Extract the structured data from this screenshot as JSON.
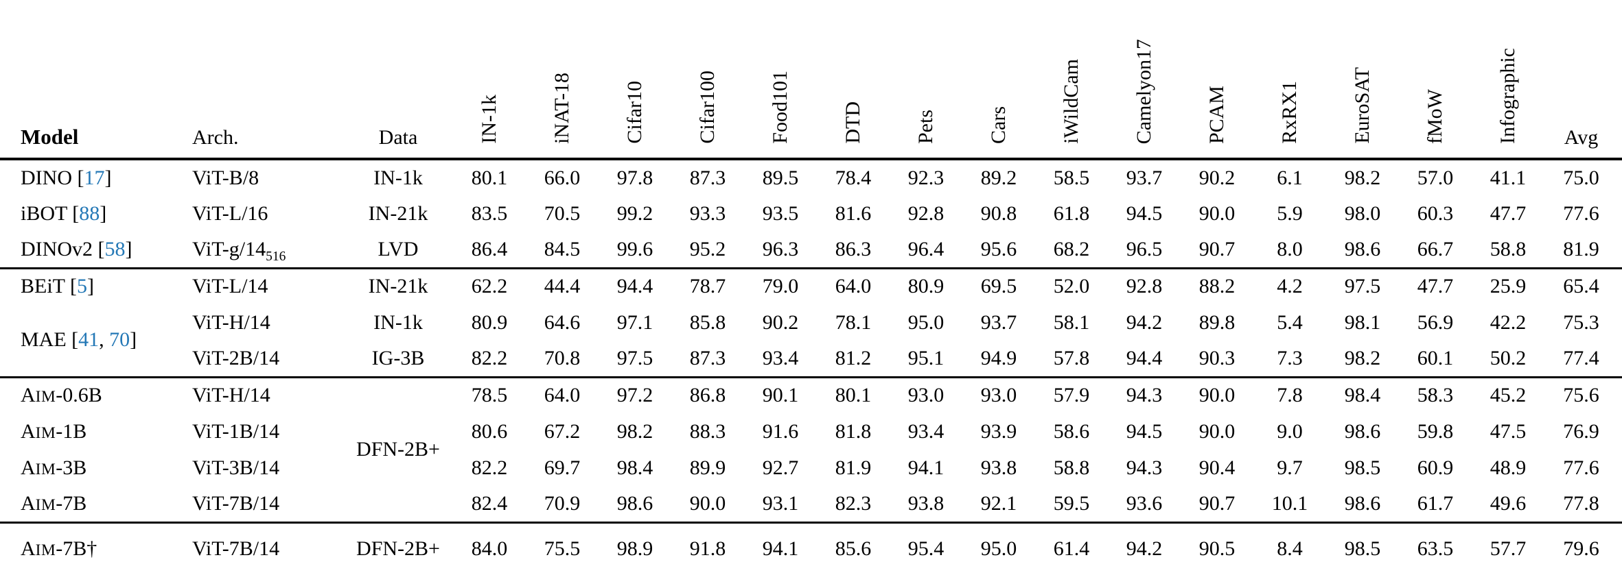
{
  "page": {
    "background": "#ffffff",
    "text_color": "#000000",
    "citation_color": "#2478b6",
    "rule_color": "#000000"
  },
  "table": {
    "header": {
      "model": "Model",
      "arch": "Arch.",
      "data": "Data",
      "avg": "Avg",
      "benchmarks": [
        "IN-1k",
        "iNAT-18",
        "Cifar10",
        "Cifar100",
        "Food101",
        "DTD",
        "Pets",
        "Cars",
        "iWildCam",
        "Camelyon17",
        "PCAM",
        "RxRX1",
        "EuroSAT",
        "fMoW",
        "Infographic"
      ]
    },
    "groups": [
      {
        "rows": [
          {
            "model": {
              "text": "DINO",
              "cites": [
                "17"
              ]
            },
            "arch": {
              "text": "ViT-B/8"
            },
            "data": "IN-1k",
            "values": [
              "80.1",
              "66.0",
              "97.8",
              "87.3",
              "89.5",
              "78.4",
              "92.3",
              "89.2",
              "58.5",
              "93.7",
              "90.2",
              "6.1",
              "98.2",
              "57.0",
              "41.1"
            ],
            "avg": "75.0"
          },
          {
            "model": {
              "text": "iBOT",
              "cites": [
                "88"
              ]
            },
            "arch": {
              "text": "ViT-L/16"
            },
            "data": "IN-21k",
            "values": [
              "83.5",
              "70.5",
              "99.2",
              "93.3",
              "93.5",
              "81.6",
              "92.8",
              "90.8",
              "61.8",
              "94.5",
              "90.0",
              "5.9",
              "98.0",
              "60.3",
              "47.7"
            ],
            "avg": "77.6"
          },
          {
            "model": {
              "text": "DINOv2",
              "cites": [
                "58"
              ]
            },
            "arch": {
              "text": "ViT-g/14",
              "sub": "516"
            },
            "data": "LVD",
            "values": [
              "86.4",
              "84.5",
              "99.6",
              "95.2",
              "96.3",
              "86.3",
              "96.4",
              "95.6",
              "68.2",
              "96.5",
              "90.7",
              "8.0",
              "98.6",
              "66.7",
              "58.8"
            ],
            "avg": "81.9"
          }
        ]
      },
      {
        "rows": [
          {
            "model": {
              "text": "BEiT",
              "cites": [
                "5"
              ]
            },
            "arch": {
              "text": "ViT-L/14"
            },
            "data": "IN-21k",
            "values": [
              "62.2",
              "44.4",
              "94.4",
              "78.7",
              "79.0",
              "64.0",
              "80.9",
              "69.5",
              "52.0",
              "92.8",
              "88.2",
              "4.2",
              "97.5",
              "47.7",
              "25.9"
            ],
            "avg": "65.4"
          },
          {
            "model": {
              "text": "MAE",
              "cites": [
                "41",
                "70"
              ],
              "rowspan": 2
            },
            "arch": {
              "text": "ViT-H/14"
            },
            "data": "IN-1k",
            "values": [
              "80.9",
              "64.6",
              "97.1",
              "85.8",
              "90.2",
              "78.1",
              "95.0",
              "93.7",
              "58.1",
              "94.2",
              "89.8",
              "5.4",
              "98.1",
              "56.9",
              "42.2"
            ],
            "avg": "75.3"
          },
          {
            "arch": {
              "text": "ViT-2B/14"
            },
            "data": "IG-3B",
            "values": [
              "82.2",
              "70.8",
              "97.5",
              "87.3",
              "93.4",
              "81.2",
              "95.1",
              "94.9",
              "57.8",
              "94.4",
              "90.3",
              "7.3",
              "98.2",
              "60.1",
              "50.2"
            ],
            "avg": "77.4"
          }
        ]
      },
      {
        "rows": [
          {
            "model": {
              "text": "AIM-0.6B",
              "smallcaps": true
            },
            "arch": {
              "text": "ViT-H/14"
            },
            "data": {
              "text": "DFN-2B+",
              "rowspan": 4
            },
            "values": [
              "78.5",
              "64.0",
              "97.2",
              "86.8",
              "90.1",
              "80.1",
              "93.0",
              "93.0",
              "57.9",
              "94.3",
              "90.0",
              "7.8",
              "98.4",
              "58.3",
              "45.2"
            ],
            "avg": "75.6"
          },
          {
            "model": {
              "text": "AIM-1B",
              "smallcaps": true
            },
            "arch": {
              "text": "ViT-1B/14"
            },
            "values": [
              "80.6",
              "67.2",
              "98.2",
              "88.3",
              "91.6",
              "81.8",
              "93.4",
              "93.9",
              "58.6",
              "94.5",
              "90.0",
              "9.0",
              "98.6",
              "59.8",
              "47.5"
            ],
            "avg": "76.9"
          },
          {
            "model": {
              "text": "AIM-3B",
              "smallcaps": true
            },
            "arch": {
              "text": "ViT-3B/14"
            },
            "values": [
              "82.2",
              "69.7",
              "98.4",
              "89.9",
              "92.7",
              "81.9",
              "94.1",
              "93.8",
              "58.8",
              "94.3",
              "90.4",
              "9.7",
              "98.5",
              "60.9",
              "48.9"
            ],
            "avg": "77.6"
          },
          {
            "model": {
              "text": "AIM-7B",
              "smallcaps": true
            },
            "arch": {
              "text": "ViT-7B/14"
            },
            "values": [
              "82.4",
              "70.9",
              "98.6",
              "90.0",
              "93.1",
              "82.3",
              "93.8",
              "92.1",
              "59.5",
              "93.6",
              "90.7",
              "10.1",
              "98.6",
              "61.7",
              "49.6"
            ],
            "avg": "77.8"
          }
        ]
      },
      {
        "rows": [
          {
            "model": {
              "text": "AIM-7B†",
              "smallcaps": true
            },
            "arch": {
              "text": "ViT-7B/14"
            },
            "data": "DFN-2B+",
            "values": [
              "84.0",
              "75.5",
              "98.9",
              "91.8",
              "94.1",
              "85.6",
              "95.4",
              "95.0",
              "61.4",
              "94.2",
              "90.5",
              "8.4",
              "98.5",
              "63.5",
              "57.7"
            ],
            "avg": "79.6"
          }
        ]
      }
    ]
  }
}
